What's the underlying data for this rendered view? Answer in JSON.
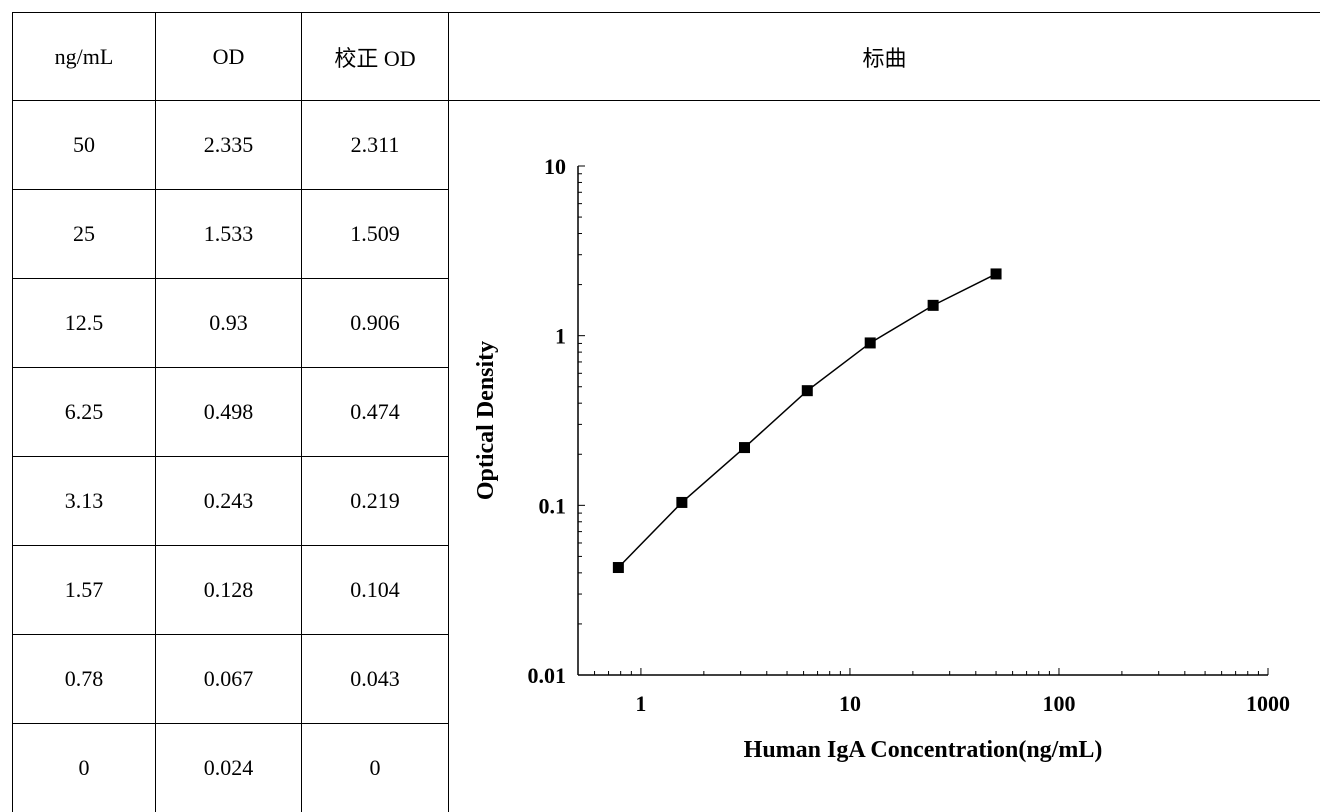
{
  "table": {
    "headers": [
      "ng/mL",
      "OD",
      "校正 OD"
    ],
    "rows": [
      [
        "50",
        "2.335",
        "2.311"
      ],
      [
        "25",
        "1.533",
        "1.509"
      ],
      [
        "12.5",
        "0.93",
        "0.906"
      ],
      [
        "6.25",
        "0.498",
        "0.474"
      ],
      [
        "3.13",
        "0.243",
        "0.219"
      ],
      [
        "1.57",
        "0.128",
        "0.104"
      ],
      [
        "0.78",
        "0.067",
        "0.043"
      ],
      [
        "0",
        "0.024",
        "0"
      ]
    ]
  },
  "chart_header": "标曲",
  "chart_data": {
    "type": "scatter",
    "title": "",
    "xlabel": "Human IgA Concentration(ng/mL)",
    "ylabel": "Optical Density",
    "x_scale": "log",
    "y_scale": "log",
    "xlim": [
      0.5,
      1000
    ],
    "ylim": [
      0.01,
      10
    ],
    "x_ticks": [
      1,
      10,
      100,
      1000
    ],
    "x_tick_labels": [
      "1",
      "10",
      "100",
      "1000"
    ],
    "y_ticks": [
      0.01,
      0.1,
      1,
      10
    ],
    "y_tick_labels": [
      "0.01",
      "0.1",
      "1",
      "10"
    ],
    "grid": false,
    "line_color": "#000000",
    "marker_color": "#000000",
    "marker": "square",
    "series": [
      {
        "x": [
          0.78,
          1.57,
          3.13,
          6.25,
          12.5,
          25,
          50
        ],
        "y": [
          0.043,
          0.104,
          0.219,
          0.474,
          0.906,
          1.509,
          2.311
        ]
      }
    ]
  }
}
